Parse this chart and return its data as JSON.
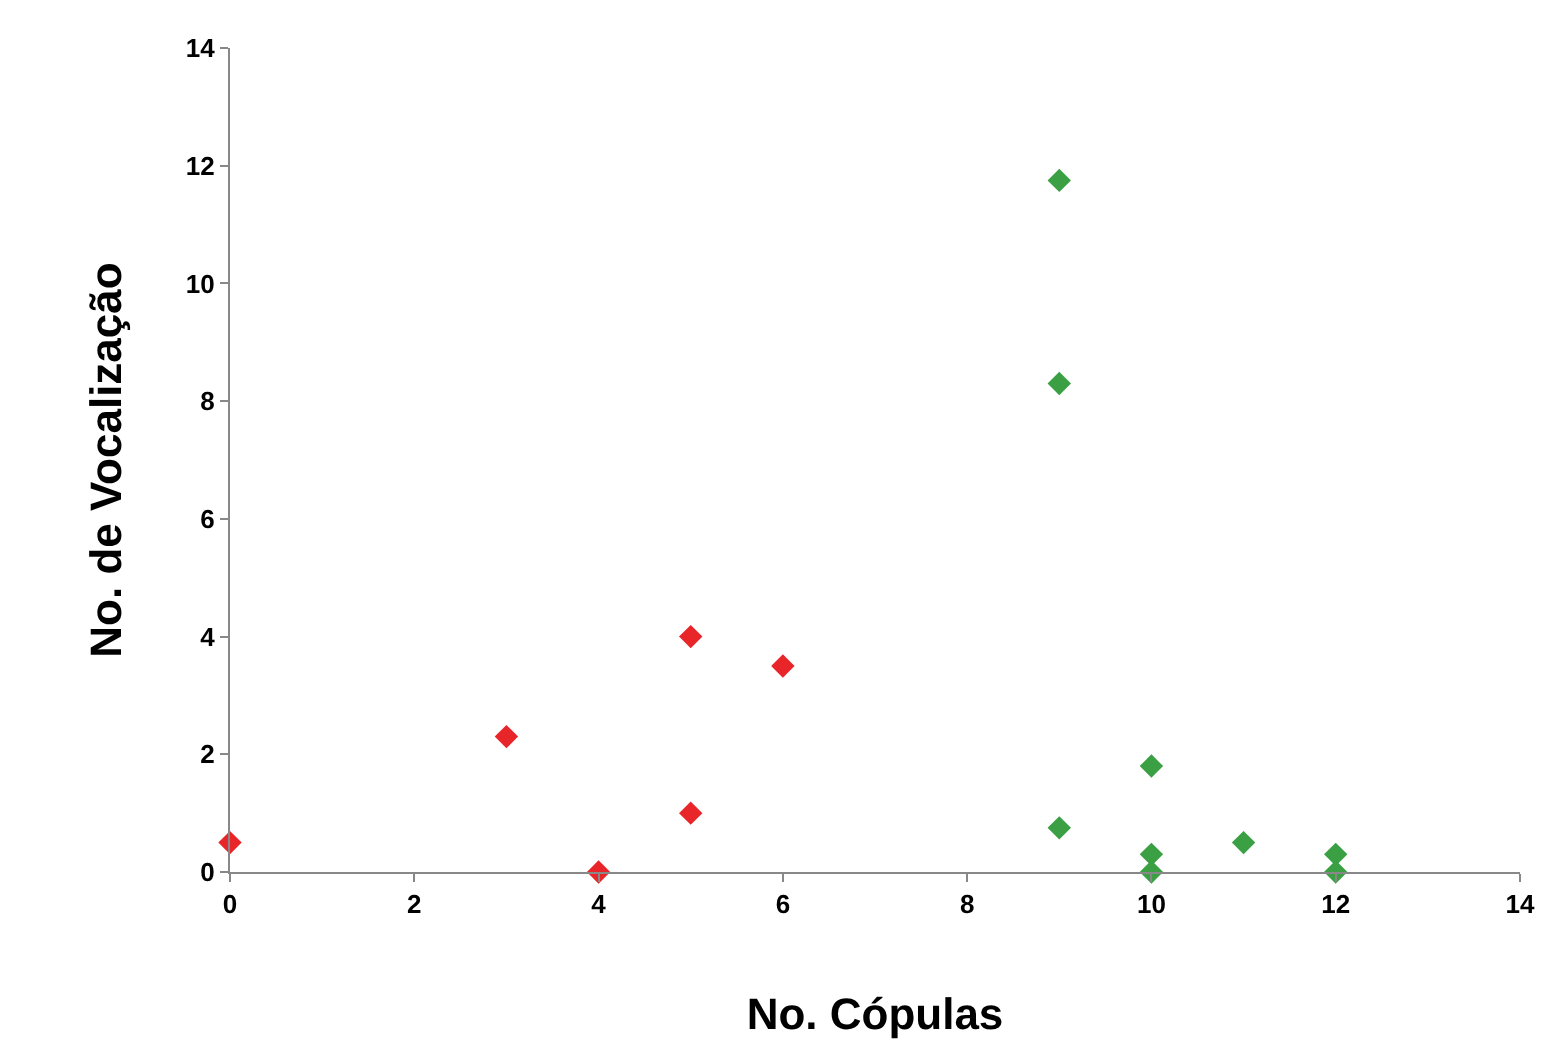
{
  "chart_data": {
    "type": "scatter",
    "xlabel": "No. Cópulas",
    "ylabel": "No. de Vocalização",
    "xlim": [
      0,
      14
    ],
    "ylim": [
      0,
      14
    ],
    "xticks": [
      0,
      2,
      4,
      6,
      8,
      10,
      12,
      14
    ],
    "yticks": [
      0,
      2,
      4,
      6,
      8,
      10,
      12,
      14
    ],
    "marker": "diamond",
    "series": [
      {
        "color": "#e8262a",
        "x": [
          0,
          3,
          4,
          5,
          5,
          6
        ],
        "values": [
          0.5,
          2.3,
          0,
          4,
          1,
          3.5
        ]
      },
      {
        "color": "#3aa043",
        "x": [
          9,
          9,
          9,
          10,
          10,
          10,
          11,
          12,
          12
        ],
        "values": [
          11.75,
          8.3,
          0.75,
          1.8,
          0.3,
          0,
          0.5,
          0.3,
          0
        ]
      }
    ]
  }
}
